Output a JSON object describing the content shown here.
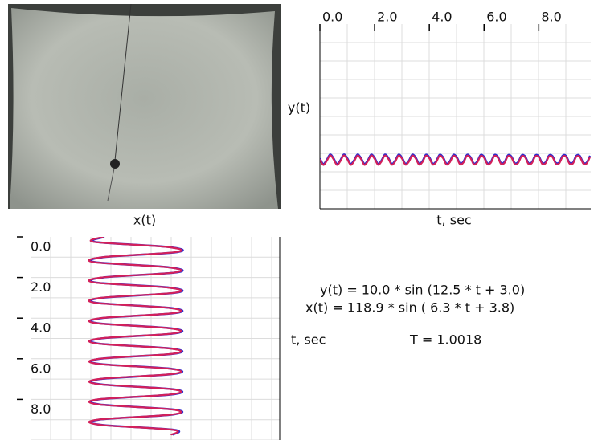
{
  "chart_data": [
    {
      "type": "line",
      "orientation": "horizontal",
      "y_label": "y(t)",
      "x_label": "t, sec",
      "xlim": [
        0,
        9.9
      ],
      "xticks": [
        {
          "value": 0,
          "label": "0.0"
        },
        {
          "value": 2,
          "label": "2.0"
        },
        {
          "value": 4,
          "label": "4.0"
        },
        {
          "value": 6,
          "label": "6.0"
        },
        {
          "value": 8,
          "label": "8.0"
        }
      ],
      "ylim": [
        -100,
        280
      ],
      "color": "#d3205a",
      "x": [
        0,
        0.125,
        0.25,
        0.375,
        0.5,
        0.625,
        0.75,
        0.875,
        1,
        1.125,
        1.25,
        1.375,
        1.5,
        1.625,
        1.75,
        1.875,
        2,
        2.125,
        2.25,
        2.375,
        2.5,
        2.625,
        2.75,
        2.875,
        3,
        3.125,
        3.25,
        3.375,
        3.5,
        3.625,
        3.75,
        3.875,
        4,
        4.125,
        4.25,
        4.375,
        4.5,
        4.625,
        4.75,
        4.875,
        5,
        5.125,
        5.25,
        5.375,
        5.5,
        5.625,
        5.75,
        5.875,
        6,
        6.125,
        6.25,
        6.375,
        6.5,
        6.625,
        6.75,
        6.875,
        7,
        7.125,
        7.25,
        7.375,
        7.5,
        7.625,
        7.75,
        7.875,
        8,
        8.125,
        8.25,
        8.375,
        8.5,
        8.625,
        8.75,
        8.875,
        9,
        9.125,
        9.25,
        9.375,
        9.5,
        9.625,
        9.75,
        9.875
      ],
      "values": [
        1.4,
        -9.9,
        -1.6,
        9.8,
        1.7,
        -9.8,
        -1.9,
        9.7,
        2.0,
        -9.7,
        -2.2,
        9.6,
        2.4,
        -9.6,
        -2.5,
        9.5,
        2.7,
        -9.5,
        -2.8,
        9.4,
        3.0,
        -9.4,
        -3.1,
        9.3,
        3.3,
        -9.3,
        -3.4,
        9.2,
        3.6,
        -9.2,
        -3.8,
        9.1,
        3.9,
        -9.1,
        -4.1,
        9.0,
        4.2,
        -9.0,
        -4.4,
        8.9,
        4.5,
        -8.9,
        -4.7,
        8.8,
        4.8,
        -8.7,
        -4.9,
        8.6,
        5.1,
        -8.5,
        -5.2,
        8.4,
        5.3,
        -8.3,
        -5.5,
        8.2,
        5.6,
        -8.1,
        -5.7,
        8.0,
        5.9,
        -7.9,
        -6.0,
        7.8,
        6.1,
        -7.7,
        -6.3,
        7.6,
        6.4,
        -7.5,
        -6.5,
        7.4,
        6.7,
        -7.3,
        -6.8,
        7.2,
        6.9,
        -7.1,
        -7.1,
        7.0
      ]
    },
    {
      "type": "line",
      "orientation": "vertical",
      "x_label": "x(t)",
      "y_label": "t, sec",
      "xlim": [
        0,
        10
      ],
      "xticks": [
        {
          "value": 0,
          "label": "0.0"
        },
        {
          "value": 2,
          "label": "2.0"
        },
        {
          "value": 4,
          "label": "4.0"
        },
        {
          "value": 6,
          "label": "6.0"
        },
        {
          "value": 8,
          "label": "8.0"
        }
      ],
      "ylim": [
        -238,
        329
      ],
      "color": "#d3205a",
      "x": [
        0,
        0.25,
        0.5,
        0.75,
        1,
        1.25,
        1.5,
        1.75,
        2,
        2.25,
        2.5,
        2.75,
        3,
        3.25,
        3.5,
        3.75,
        4,
        4.25,
        4.5,
        4.75,
        5,
        5.25,
        5.5,
        5.75,
        6,
        6.25,
        6.5,
        6.75,
        7,
        7.25,
        7.5,
        7.75,
        8,
        8.25,
        8.5,
        8.75,
        9,
        9.25,
        9.5,
        9.75
      ],
      "values": [
        -72.8,
        -93.7,
        73.5,
        93.1,
        -74.2,
        -92.4,
        74.9,
        91.7,
        -75.7,
        -91.1,
        76.4,
        90.4,
        -77.1,
        -89.7,
        77.9,
        89.1,
        -78.6,
        -88.4,
        79.3,
        87.7,
        -80.0,
        -87.1,
        80.8,
        86.4,
        -81.5,
        -85.8,
        82.2,
        85.1,
        -83.0,
        -84.4,
        83.7,
        83.8,
        -84.4,
        -83.1,
        85.1,
        82.4,
        -85.9,
        -81.8,
        86.6,
        81.1
      ]
    }
  ],
  "equations": [
    "y(t) = 10.0 * sin (12.5 * t + 3.0)",
    "x(t) = 118.9 * sin ( 6.3 * t + 3.8)"
  ],
  "period": "T = 1.0018"
}
